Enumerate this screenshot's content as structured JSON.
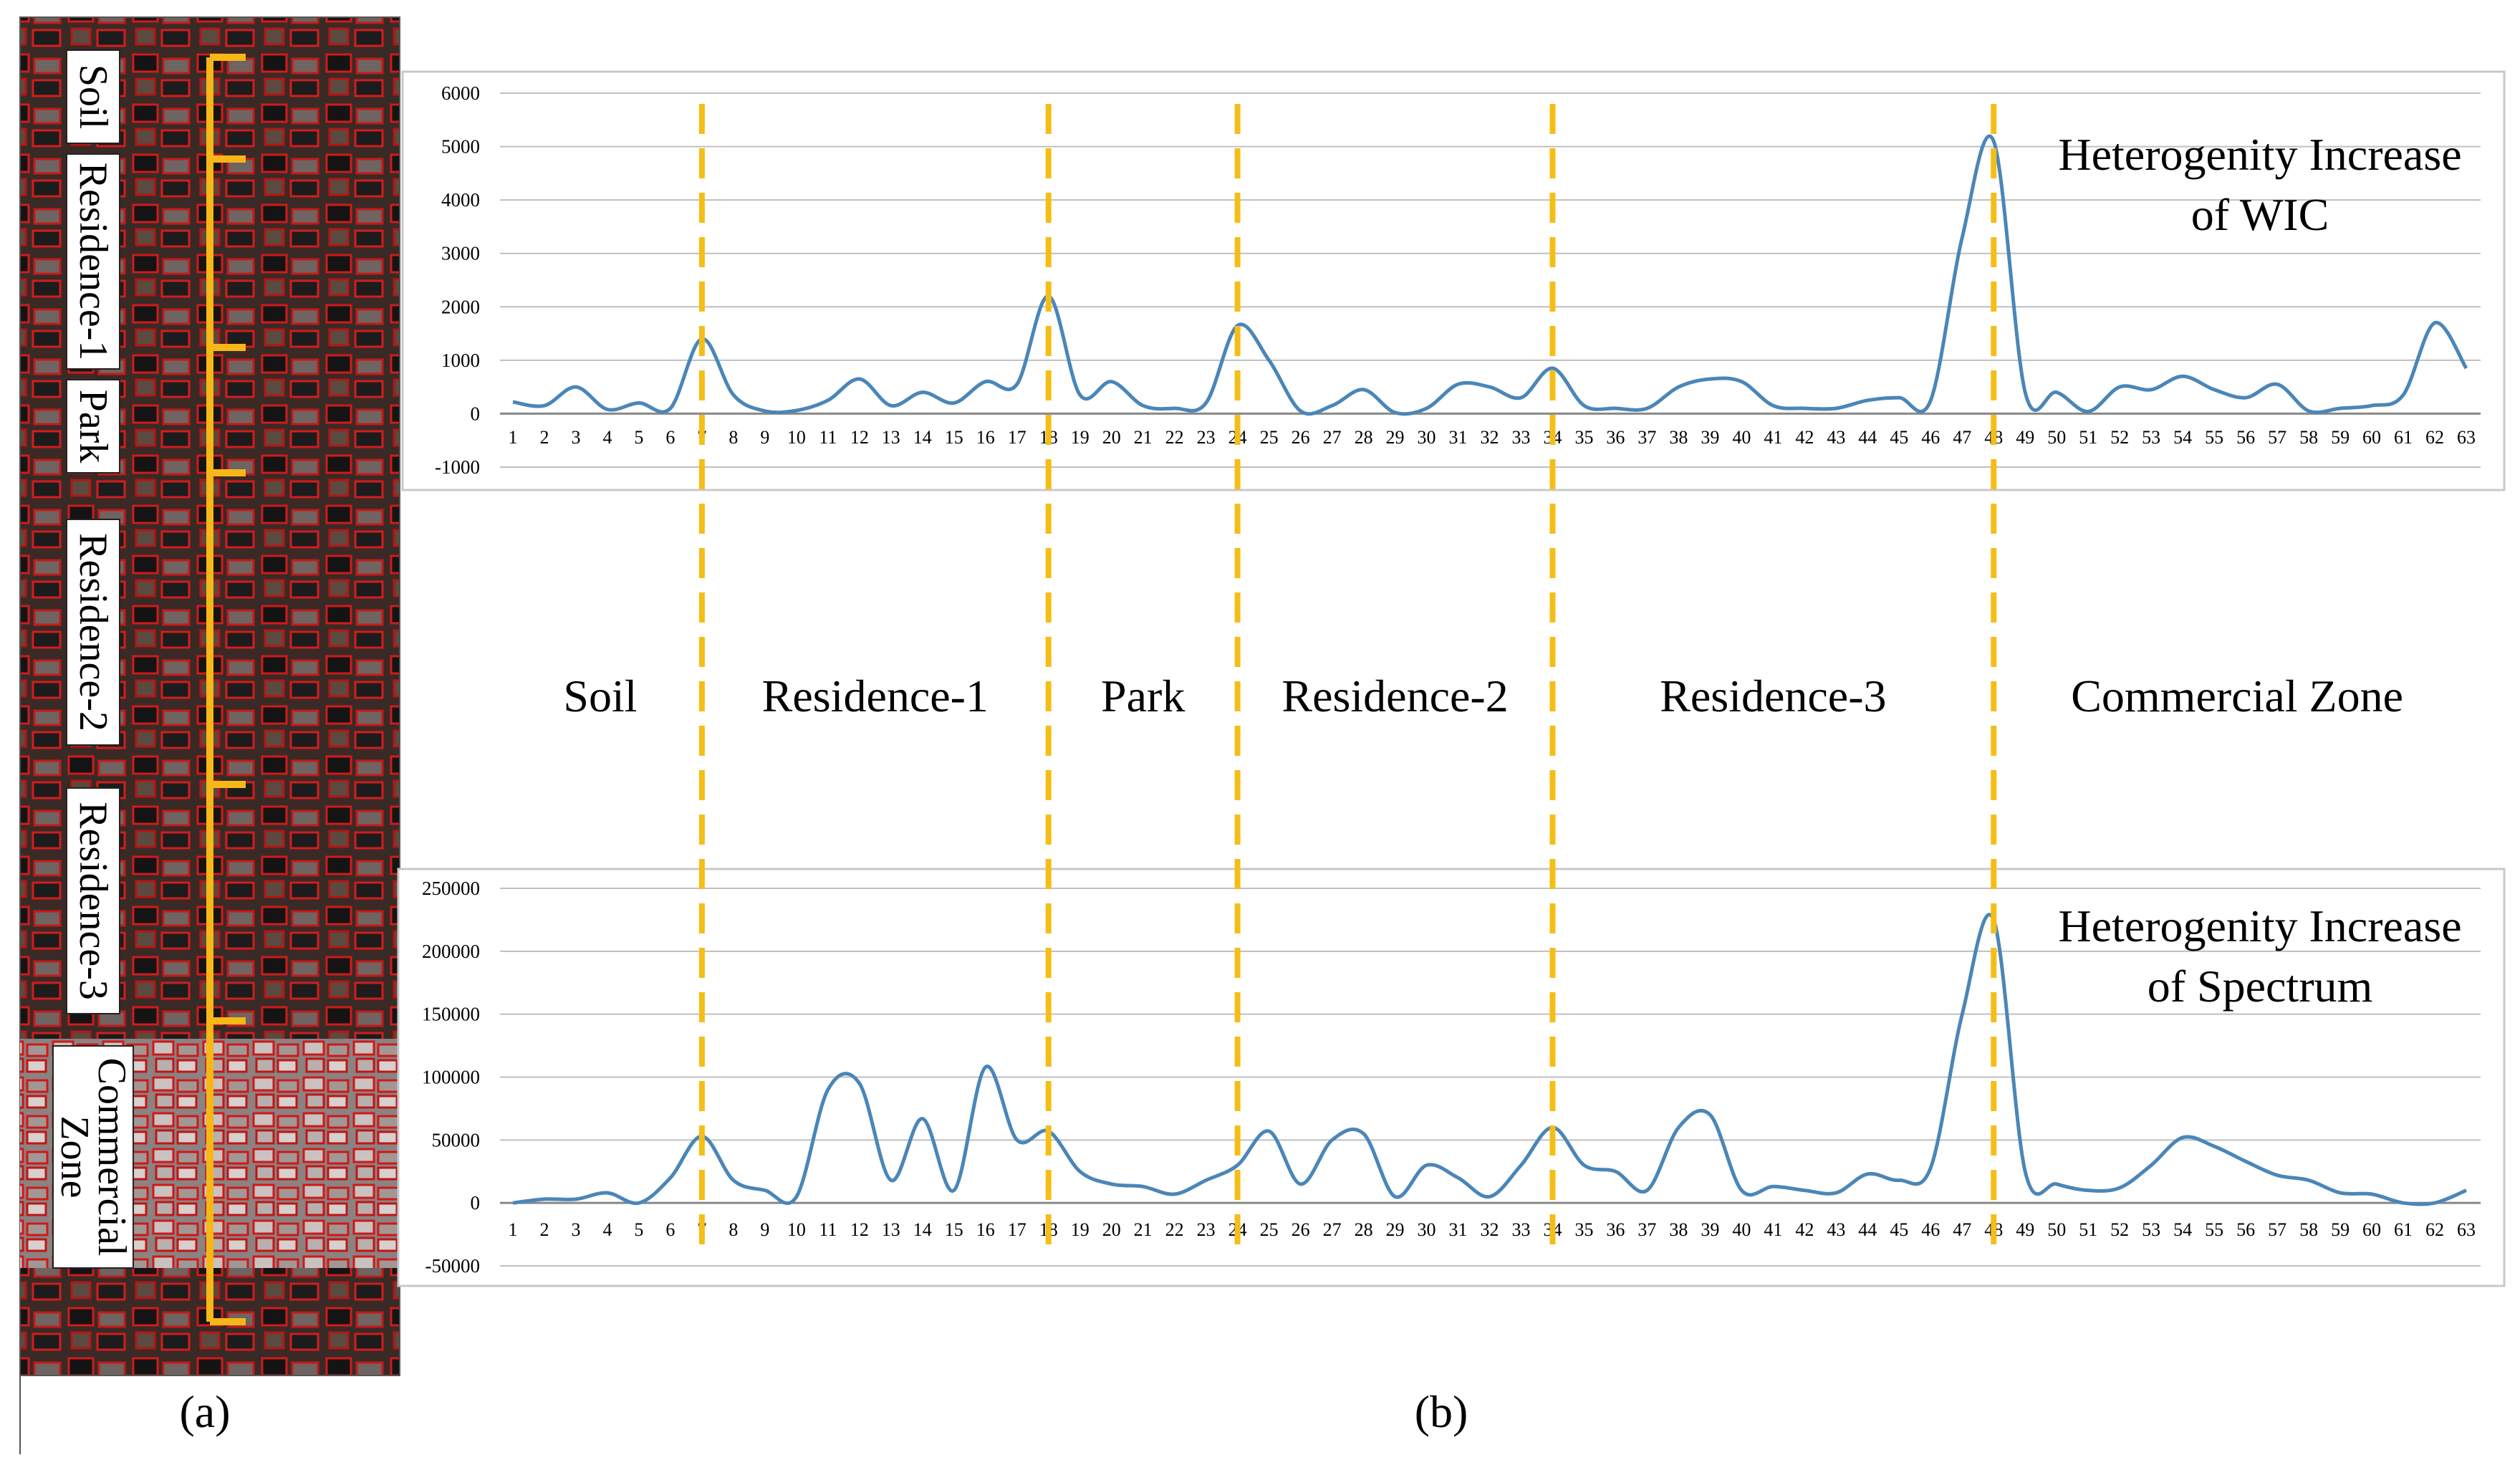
{
  "panel_labels": {
    "a": "(a)",
    "b": "(b)"
  },
  "colors": {
    "series": "#4a86b8",
    "divider": "#f5be16",
    "bracket": "#f7b718",
    "grid": "#bfbfbf",
    "frame": "#c8c8c8"
  },
  "image_panel": {
    "zones": [
      {
        "label": "Soil",
        "lines": [
          "Soil"
        ]
      },
      {
        "label": "Residence-1",
        "lines": [
          "Residence-1"
        ]
      },
      {
        "label": "Park",
        "lines": [
          "Park"
        ]
      },
      {
        "label": "Residence-2",
        "lines": [
          "Residence-2"
        ]
      },
      {
        "label": "Residence-3",
        "lines": [
          "Residence-3"
        ]
      },
      {
        "label": "Commercial Zone",
        "lines": [
          "Commercial",
          "Zone"
        ]
      }
    ]
  },
  "zones": [
    "Soil",
    "Residence-1",
    "Park",
    "Residence-2",
    "Residence-3",
    "Commercial Zone"
  ],
  "boundaries": [
    7,
    18,
    24,
    34,
    48
  ],
  "chart_data": [
    {
      "type": "line",
      "title_lines": [
        "Heterogenity Increase",
        "of WIC"
      ],
      "x": [
        1,
        2,
        3,
        4,
        5,
        6,
        7,
        8,
        9,
        10,
        11,
        12,
        13,
        14,
        15,
        16,
        17,
        18,
        19,
        20,
        21,
        22,
        23,
        24,
        25,
        26,
        27,
        28,
        29,
        30,
        31,
        32,
        33,
        34,
        35,
        36,
        37,
        38,
        39,
        40,
        41,
        42,
        43,
        44,
        45,
        46,
        47,
        48,
        49,
        50,
        51,
        52,
        53,
        54,
        55,
        56,
        57,
        58,
        59,
        60,
        61,
        62,
        63
      ],
      "yticks": [
        6000,
        5000,
        4000,
        3000,
        2000,
        1000,
        0,
        -1000
      ],
      "ylim": [
        -1000,
        6000
      ],
      "series": [
        {
          "values": [
            220,
            150,
            500,
            80,
            200,
            100,
            1400,
            350,
            50,
            60,
            250,
            650,
            150,
            400,
            200,
            600,
            550,
            2200,
            350,
            600,
            150,
            100,
            200,
            1650,
            1000,
            50,
            150,
            450,
            20,
            100,
            550,
            500,
            300,
            850,
            150,
            100,
            100,
            500,
            650,
            600,
            150,
            100,
            100,
            250,
            300,
            250,
            3300,
            5100,
            400,
            400,
            40,
            500,
            450,
            700,
            450,
            300,
            550,
            50,
            100,
            150,
            350,
            1700,
            850
          ]
        }
      ]
    },
    {
      "type": "line",
      "title_lines": [
        "Heterogenity Increase",
        "of Spectrum"
      ],
      "x": [
        1,
        2,
        3,
        4,
        5,
        6,
        7,
        8,
        9,
        10,
        11,
        12,
        13,
        14,
        15,
        16,
        17,
        18,
        19,
        20,
        21,
        22,
        23,
        24,
        25,
        26,
        27,
        28,
        29,
        30,
        31,
        32,
        33,
        34,
        35,
        36,
        37,
        38,
        39,
        40,
        41,
        42,
        43,
        44,
        45,
        46,
        47,
        48,
        49,
        50,
        51,
        52,
        53,
        54,
        55,
        56,
        57,
        58,
        59,
        60,
        61,
        62,
        63
      ],
      "yticks": [
        250000,
        200000,
        150000,
        100000,
        50000,
        0,
        -50000
      ],
      "ylim": [
        -50000,
        250000
      ],
      "series": [
        {
          "values": [
            0,
            3000,
            3000,
            8000,
            0,
            20000,
            53000,
            18000,
            10000,
            5000,
            90000,
            95000,
            18000,
            67000,
            10000,
            108000,
            50000,
            57000,
            25000,
            15000,
            13000,
            7000,
            18000,
            30000,
            57000,
            15000,
            50000,
            55000,
            5000,
            30000,
            20000,
            5000,
            30000,
            60000,
            30000,
            25000,
            10000,
            60000,
            70000,
            10000,
            13000,
            10000,
            8000,
            23000,
            18000,
            28000,
            150000,
            225000,
            25000,
            15000,
            10000,
            12000,
            30000,
            52000,
            45000,
            33000,
            22000,
            18000,
            8000,
            7000,
            0,
            0,
            10000
          ]
        }
      ]
    }
  ]
}
